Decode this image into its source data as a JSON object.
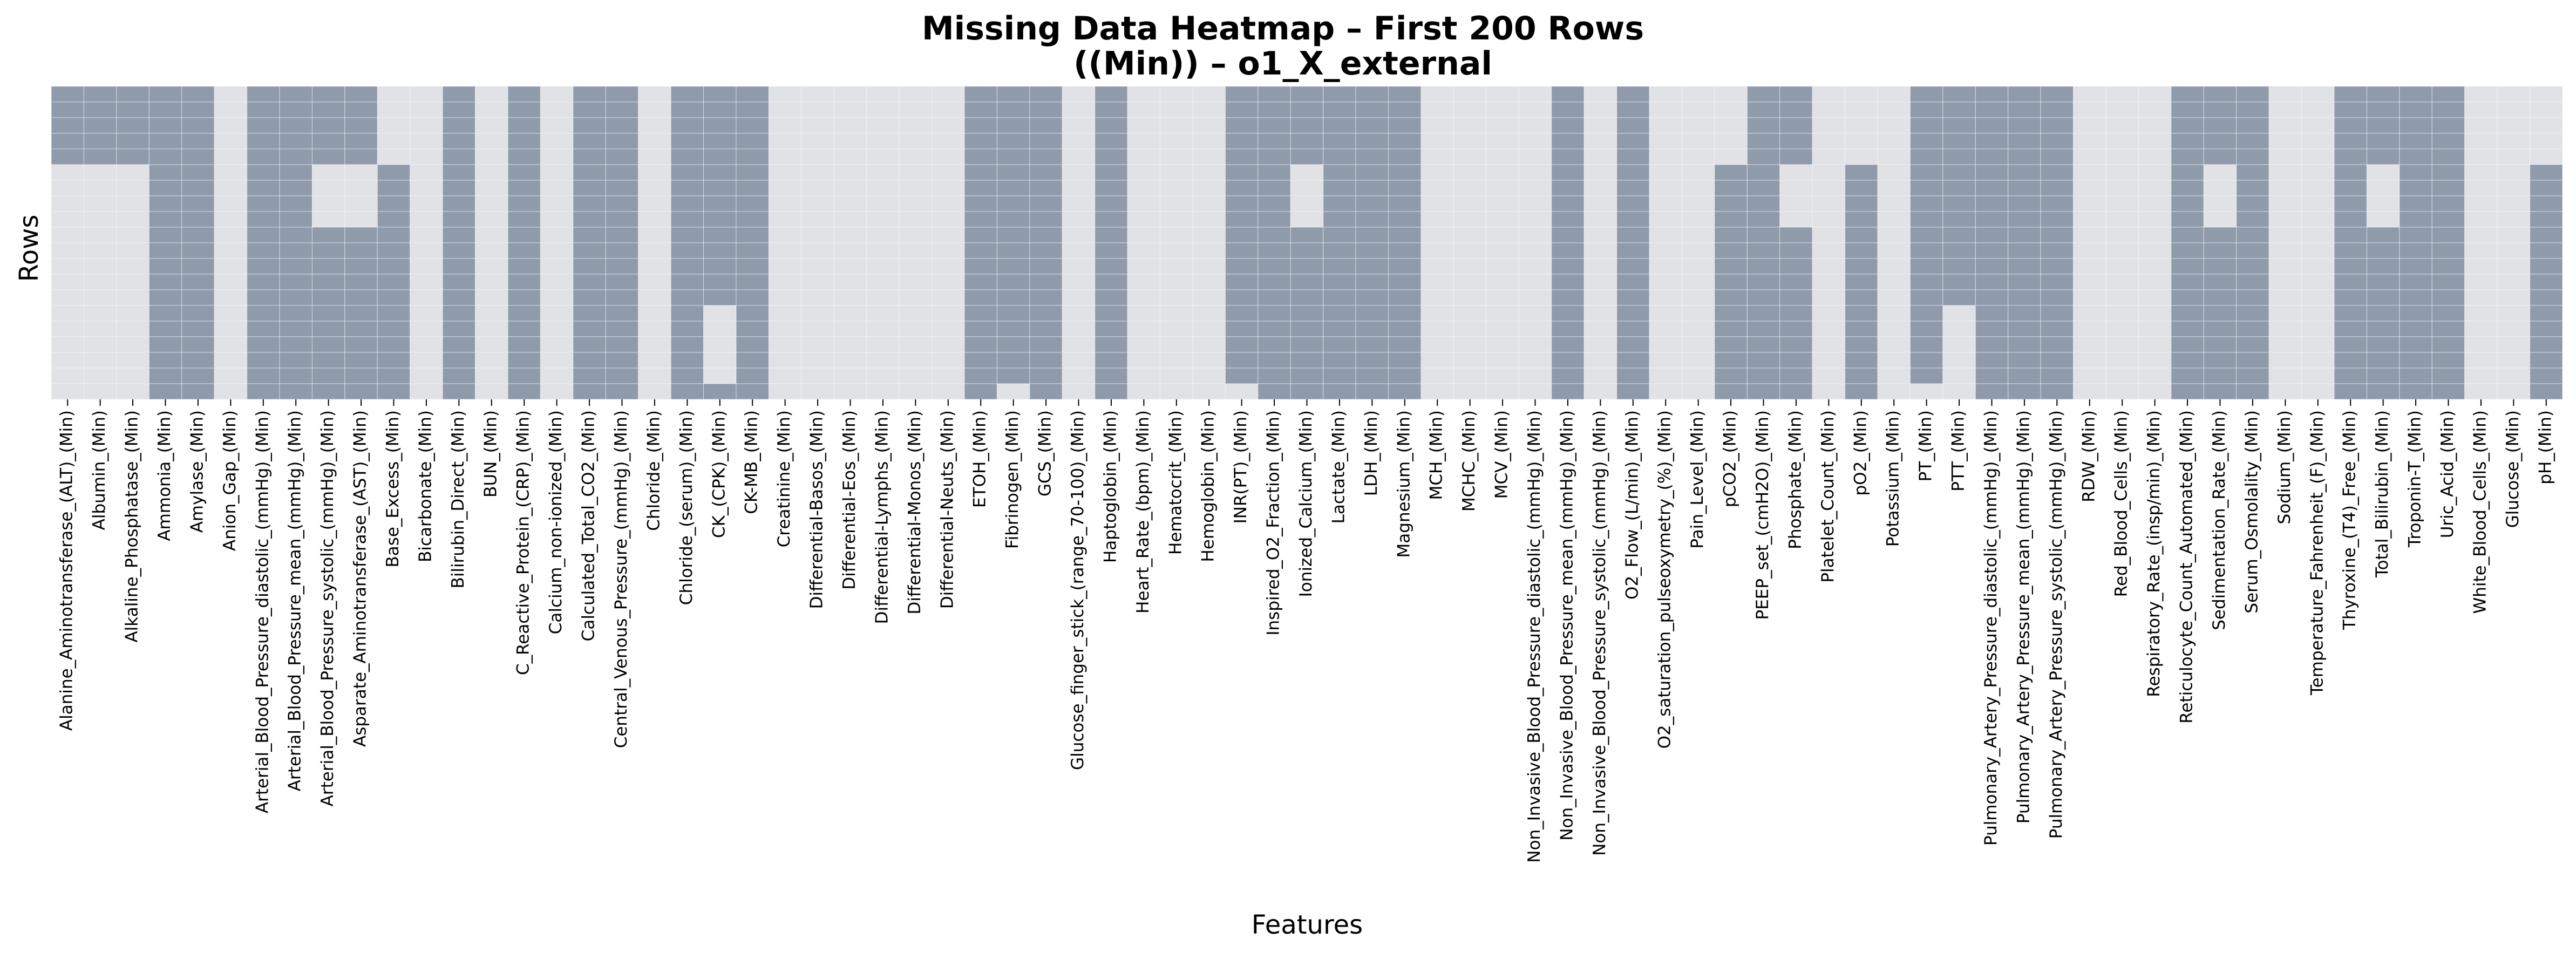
{
  "chart_data": {
    "type": "heatmap",
    "title_line1": "Missing Data Heatmap – First 200 Rows",
    "title_line2": "((Min)) – o1_X_external",
    "xlabel": "Features",
    "ylabel": "Rows",
    "legend": "none",
    "grid": true,
    "colors": {
      "missing": "#e0e2e5",
      "present": "#8f9aab",
      "grid": "#ffffff"
    },
    "n_row_blocks": 20,
    "features": [
      "Alanine_Aminotransferase_(ALT)_(Min)",
      "Albumin_(Min)",
      "Alkaline_Phosphatase_(Min)",
      "Ammonia_(Min)",
      "Amylase_(Min)",
      "Anion_Gap_(Min)",
      "Arterial_Blood_Pressure_diastolic_(mmHg)_(Min)",
      "Arterial_Blood_Pressure_mean_(mmHg)_(Min)",
      "Arterial_Blood_Pressure_systolic_(mmHg)_(Min)",
      "Asparate_Aminotransferase_(AST)_(Min)",
      "Base_Excess_(Min)",
      "Bicarbonate_(Min)",
      "Bilirubin_Direct_(Min)",
      "BUN_(Min)",
      "C_Reactive_Protein_(CRP)_(Min)",
      "Calcium_non-ionized_(Min)",
      "Calculated_Total_CO2_(Min)",
      "Central_Venous_Pressure_(mmHg)_(Min)",
      "Chloride_(Min)",
      "Chloride_(serum)_(Min)",
      "CK_(CPK)_(Min)",
      "CK-MB_(Min)",
      "Creatinine_(Min)",
      "Differential-Basos_(Min)",
      "Differential-Eos_(Min)",
      "Differential-Lymphs_(Min)",
      "Differential-Monos_(Min)",
      "Differential-Neuts_(Min)",
      "ETOH_(Min)",
      "Fibrinogen_(Min)",
      "GCS_(Min)",
      "Glucose_finger_stick_(range_70-100)_(Min)",
      "Haptoglobin_(Min)",
      "Heart_Rate_(bpm)_(Min)",
      "Hematocrit_(Min)",
      "Hemoglobin_(Min)",
      "INR(PT)_(Min)",
      "Inspired_O2_Fraction_(Min)",
      "Ionized_Calcium_(Min)",
      "Lactate_(Min)",
      "LDH_(Min)",
      "Magnesium_(Min)",
      "MCH_(Min)",
      "MCHC_(Min)",
      "MCV_(Min)",
      "Non_Invasive_Blood_Pressure_diastolic_(mmHg)_(Min)",
      "Non_Invasive_Blood_Pressure_mean_(mmHg)_(Min)",
      "Non_Invasive_Blood_Pressure_systolic_(mmHg)_(Min)",
      "O2_Flow_(L/min)_(Min)",
      "O2_saturation_pulseoxymetry_(%)_(Min)",
      "Pain_Level_(Min)",
      "pCO2_(Min)",
      "PEEP_set_(cmH2O)_(Min)",
      "Phosphate_(Min)",
      "Platelet_Count_(Min)",
      "pO2_(Min)",
      "Potassium_(Min)",
      "PT_(Min)",
      "PTT_(Min)",
      "Pulmonary_Artery_Pressure_diastolic_(mmHg)_(Min)",
      "Pulmonary_Artery_Pressure_mean_(mmHg)_(Min)",
      "Pulmonary_Artery_Pressure_systolic_(mmHg)_(Min)",
      "RDW_(Min)",
      "Red_Blood_Cells_(Min)",
      "Respiratory_Rate_(insp/min)_(Min)",
      "Reticulocyte_Count_Automated_(Min)",
      "Sedimentation_Rate_(Min)",
      "Serum_Osmolality_(Min)",
      "Sodium_(Min)",
      "Temperature_Fahrenheit_(F)_(Min)",
      "Thyroxine_(T4)_Free_(Min)",
      "Total_Bilirubin_(Min)",
      "Troponin-T_(Min)",
      "Uric_Acid_(Min)",
      "White_Blood_Cells_(Min)",
      "Glucose_(Min)",
      "pH_(Min)"
    ],
    "present_mask": [
      "11111000000000000000",
      "11111000000000000000",
      "11111000000000000000",
      "11111111111111111111",
      "11111111111111111111",
      "00000000000000000000",
      "11111111111111111111",
      "11111111111111111111",
      "11111000011111111111",
      "11111000011111111111",
      "00000111111111111111",
      "00000000000000000000",
      "11111111111111111111",
      "00000000000000000000",
      "11111111111111111111",
      "00000000000000000000",
      "11111111111111111111",
      "11111111111111111111",
      "00000000000000000000",
      "11111111111111111111",
      "11111111111111000001",
      "11111111111111111111",
      "00000000000000000000",
      "00000000000000000000",
      "00000000000000000000",
      "00000000000000000000",
      "00000000000000000000",
      "00000000000000000000",
      "11111111111111111111",
      "11111111111111111110",
      "11111111111111111111",
      "00000000000000000000",
      "11111111111111111111",
      "00000000000000000000",
      "00000000000000000000",
      "00000000000000000000",
      "11111111111111111110",
      "11111111111111111111",
      "11111000011111111111",
      "11111111111111111111",
      "11111111111111111111",
      "11111111111111111111",
      "00000000000000000000",
      "00000000000000000000",
      "00000000000000000000",
      "00000000000000000000",
      "11111111111111111111",
      "00000000000000000000",
      "11111111111111111111",
      "00000000000000000000",
      "00000000000000000000",
      "00000111111111111111",
      "11111111111111111111",
      "11111000011111111111",
      "00000000000000000000",
      "00000111111111111111",
      "00000000000000000000",
      "11111111111111111110",
      "11111111111111000000",
      "11111111111111111111",
      "11111111111111111111",
      "11111111111111111111",
      "00000000000000000000",
      "00000000000000000000",
      "00000000000000000000",
      "11111111111111111111",
      "11111000011111111111",
      "11111111111111111111",
      "00000000000000000000",
      "00000000000000000000",
      "11111111111111111111",
      "11111000011111111111",
      "11111111111111111111",
      "11111111111111111111",
      "00000000000000000000",
      "00000000000000000000",
      "00000111111111111111"
    ]
  }
}
